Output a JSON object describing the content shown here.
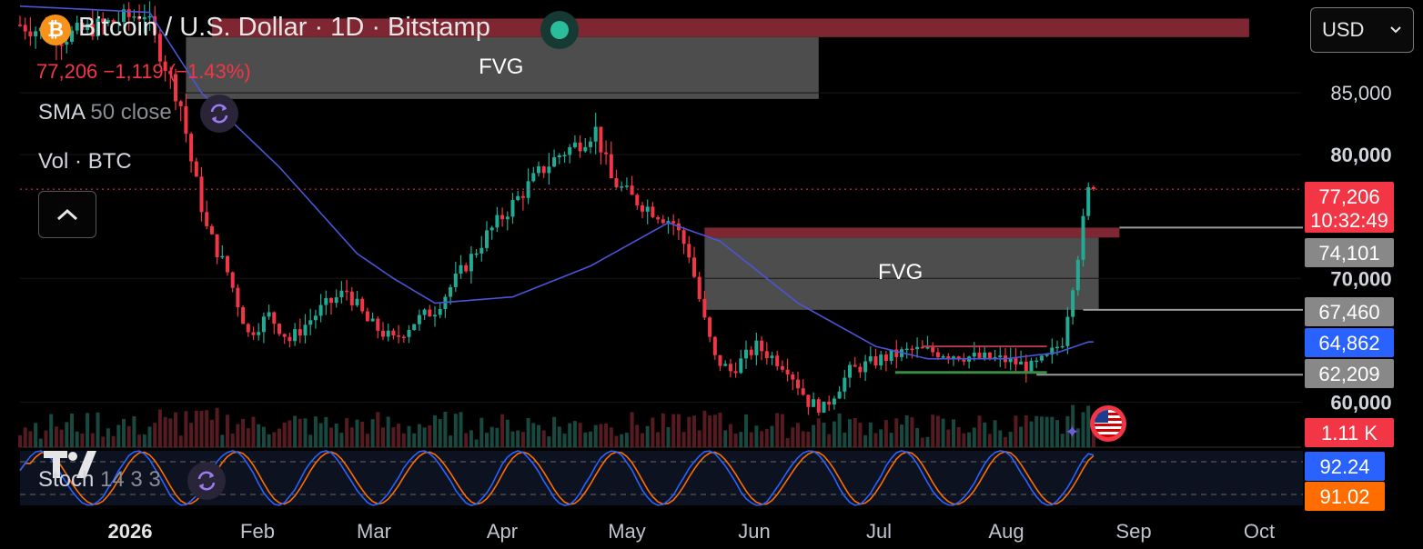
{
  "header": {
    "symbol_title": "Bitcoin / U.S. Dollar · 1D · Bitstamp",
    "logo_glyph": "₿",
    "ohlc_text": "77,206 −1,119 (−1.43%)",
    "change_color": "#f23645",
    "live_status_color": "#2bbd9a"
  },
  "indicators": {
    "sma": {
      "name": "SMA",
      "params": "50 close",
      "color": "#4a55d8"
    },
    "volume": {
      "name": "Vol · BTC"
    },
    "stoch": {
      "name": "Stoch",
      "params": "14 3 3",
      "k_color": "#2962ff",
      "d_color": "#ff6d00"
    }
  },
  "currency_selector": {
    "value": "USD"
  },
  "icons": [
    "bitcoin-logo",
    "live-status-dot",
    "cycle-icon",
    "chevron-up-icon",
    "chevron-down-icon",
    "tradingview-logo",
    "us-flag-icon",
    "sparkle-icon"
  ],
  "chart_data": {
    "type": "candlestick",
    "x_axis": {
      "labels": [
        "2026",
        "Feb",
        "Mar",
        "Apr",
        "May",
        "Jun",
        "Jul",
        "Aug",
        "Sep",
        "Oct"
      ]
    },
    "y_axis": {
      "labels": [
        "85,000",
        "80,000",
        "70,000",
        "60,000"
      ],
      "range": [
        56500,
        92500
      ]
    },
    "price_path": [
      [
        0,
        90500
      ],
      [
        8,
        89500
      ],
      [
        16,
        90500
      ],
      [
        24,
        91500
      ],
      [
        31,
        84000
      ],
      [
        33,
        79500
      ],
      [
        36,
        74000
      ],
      [
        40,
        70500
      ],
      [
        44,
        65500
      ],
      [
        48,
        67000
      ],
      [
        52,
        65000
      ],
      [
        58,
        67500
      ],
      [
        63,
        69000
      ],
      [
        67,
        66500
      ],
      [
        72,
        65000
      ],
      [
        76,
        66500
      ],
      [
        80,
        67500
      ],
      [
        85,
        70500
      ],
      [
        90,
        73500
      ],
      [
        95,
        76000
      ],
      [
        100,
        78500
      ],
      [
        104,
        80000
      ],
      [
        108,
        81000
      ],
      [
        111,
        82000
      ],
      [
        114,
        78000
      ],
      [
        118,
        76500
      ],
      [
        122,
        75500
      ],
      [
        126,
        74500
      ],
      [
        129,
        72000
      ],
      [
        132,
        66500
      ],
      [
        134,
        63500
      ],
      [
        137,
        62500
      ],
      [
        142,
        64500
      ],
      [
        148,
        62800
      ],
      [
        152,
        60000
      ],
      [
        155,
        59500
      ],
      [
        160,
        62500
      ],
      [
        166,
        63500
      ],
      [
        172,
        64200
      ],
      [
        178,
        64000
      ],
      [
        184,
        63600
      ],
      [
        190,
        63400
      ],
      [
        195,
        62800
      ],
      [
        198,
        63500
      ],
      [
        201,
        65000
      ],
      [
        204,
        72000
      ],
      [
        206,
        77000
      ],
      [
        207,
        77206
      ]
    ],
    "sma50_path": [
      [
        0,
        92000
      ],
      [
        25,
        91500
      ],
      [
        35,
        85000
      ],
      [
        50,
        79000
      ],
      [
        65,
        72000
      ],
      [
        72,
        70000
      ],
      [
        80,
        68000
      ],
      [
        95,
        68500
      ],
      [
        110,
        71000
      ],
      [
        125,
        74500
      ],
      [
        135,
        73000
      ],
      [
        150,
        68000
      ],
      [
        165,
        64500
      ],
      [
        175,
        63500
      ],
      [
        190,
        63500
      ],
      [
        200,
        64000
      ],
      [
        206,
        64862
      ]
    ],
    "price_scale_labels": [
      {
        "text": "77,206",
        "sub": "10:32:49",
        "kind": "last-price",
        "color": "#f23645"
      },
      {
        "text": "74,101",
        "kind": "level",
        "color": "#888888"
      },
      {
        "text": "67,460",
        "kind": "level",
        "color": "#888888"
      },
      {
        "text": "64,862",
        "kind": "sma",
        "color": "#2962ff"
      },
      {
        "text": "62,209",
        "kind": "level",
        "color": "#888888"
      },
      {
        "text": "1.11 K",
        "kind": "volume",
        "color": "#f23645"
      },
      {
        "text": "92.24",
        "kind": "stoch-k",
        "color": "#2962ff"
      },
      {
        "text": "91.02",
        "kind": "stoch-d",
        "color": "#ff6d00"
      }
    ],
    "zones": [
      {
        "label": "FVG",
        "kind": "fvg",
        "x_from": 32,
        "x_to": 154,
        "price_from": 84500,
        "price_to": 89500,
        "color": "#5a5a5a"
      },
      {
        "label": "",
        "kind": "resistance",
        "x_from": 37,
        "x_to": 237,
        "price_from": 89500,
        "price_to": 91000,
        "color": "#8c2a36"
      },
      {
        "label": "FVG",
        "kind": "fvg",
        "x_from": 132,
        "x_to": 208,
        "price_from": 67460,
        "price_to": 73300,
        "color": "#5a5a5a"
      },
      {
        "label": "",
        "kind": "resistance",
        "x_from": 132,
        "x_to": 212,
        "price_from": 73300,
        "price_to": 74101,
        "color": "#8c2a36"
      }
    ],
    "level_lines": [
      {
        "price": 74101,
        "x_from": 212,
        "color": "#9a9a9a"
      },
      {
        "price": 67460,
        "x_from": 205,
        "color": "#9a9a9a"
      },
      {
        "price": 62209,
        "x_from": 196,
        "color": "#9a9a9a"
      }
    ],
    "last_price_line": {
      "price": 77206,
      "color": "#f23645"
    },
    "range_box": {
      "top_price": 64500,
      "bottom_price": 62400,
      "x_from": 174,
      "x_to": 198,
      "top_color": "#b03a48",
      "bottom_color": "#3a8a48"
    },
    "stochastic": {
      "k_last": 92.24,
      "d_last": 91.02,
      "bands": [
        80,
        20
      ]
    }
  }
}
